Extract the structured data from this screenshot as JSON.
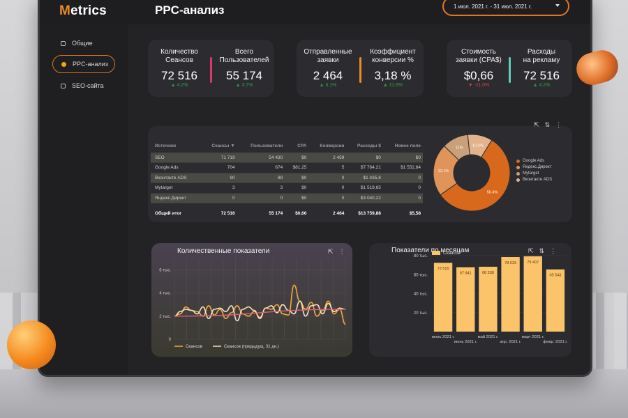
{
  "app": {
    "logo_m": "M",
    "logo_rest": "etrics",
    "page_title": "PPC-анализ"
  },
  "date_range": "1 июл. 2021 г. - 31 июл. 2021 г.",
  "sidebar": {
    "items": [
      {
        "label": "Общие",
        "active": false
      },
      {
        "label": "PPC-анализ",
        "active": true
      },
      {
        "label": "SEO-сайта",
        "active": false
      }
    ]
  },
  "kpis": [
    {
      "label_1": "Количество",
      "label_2": "Сеансов",
      "value": "72 516",
      "delta": "▲ 4.2%",
      "color": "#2ea043"
    },
    {
      "label_1": "Всего",
      "label_2": "Пользователей",
      "value": "55 174",
      "delta": "▲ 3.7%",
      "color": "#2ea043"
    },
    {
      "label_1": "Отправленные",
      "label_2": "заявки",
      "value": "2 464",
      "delta": "▲ 6.1%",
      "color": "#2ea043"
    },
    {
      "label_1": "Коэффициент",
      "label_2": "конверсии %",
      "value": "3,18 %",
      "delta": "▲ 11.6%",
      "color": "#2ea043"
    },
    {
      "label_1": "Стоимость",
      "label_2": "заявки (CPA$)",
      "value": "$0,66",
      "delta": "▼ -11.0%",
      "color": "#e04040"
    },
    {
      "label_1": "Расходы",
      "label_2": "на рекламу",
      "value": "72 516",
      "delta": "▲ 4.2%",
      "color": "#2ea043"
    }
  ],
  "accent_bars": {
    "pink": "#d63a68",
    "orange": "#f08a24",
    "teal": "#5fd0b8"
  },
  "table": {
    "headers": [
      "Источник",
      "Сеансы ▼",
      "Пользователи",
      "CPA",
      "Конверсии",
      "Расходы $",
      "Новое поле"
    ],
    "rows": [
      [
        "SEO",
        "71 719",
        "54 430",
        "$0",
        "2 459",
        "$0",
        "$0"
      ],
      [
        "Google Ads",
        "704",
        "674",
        "$81,25",
        "5",
        "$7 764,21",
        "$1 552,84"
      ],
      [
        "Вконтакте ADS",
        "90",
        "89",
        "$0",
        "0",
        "$1 435,8",
        "0"
      ],
      [
        "Mytarget",
        "3",
        "3",
        "$0",
        "0",
        "$1 519,65",
        "0"
      ],
      [
        "Яндекс.Директ",
        "0",
        "0",
        "$0",
        "0",
        "$3 040,22",
        "0"
      ]
    ],
    "total": [
      "Общий итог",
      "72 516",
      "55 174",
      "$0,66",
      "2 464",
      "$13 759,88",
      "$5,58"
    ]
  },
  "pie_legend": [
    "Google Ads",
    "Яндекс.Директ",
    "Mytarget",
    "Вконтакте ADS"
  ],
  "chart_data": [
    {
      "type": "pie",
      "categories": [
        "Google Ads",
        "Яндекс.Директ",
        "Mytarget",
        "Вконтакте ADS"
      ],
      "values": [
        56.4,
        22.1,
        11.0,
        10.4
      ],
      "labels": [
        "56.4%",
        "22.1%",
        "11%",
        "10.4%"
      ],
      "colors": [
        "#d8691c",
        "#e0945a",
        "#c9a07a",
        "#e2b38c"
      ]
    },
    {
      "type": "line",
      "title": "Количественные показатели",
      "ylim": [
        0,
        7
      ],
      "yticks": [
        "0",
        "2 тыс.",
        "4 тыс.",
        "6 тыс."
      ],
      "series": [
        {
          "name": "Сеансов",
          "color": "#f2a93c",
          "values": [
            2.0,
            2.2,
            2.8,
            2.5,
            2.4,
            2.0,
            2.9,
            2.1,
            2.6,
            1.8,
            2.3,
            2.9,
            2.2,
            2.0,
            2.4,
            1.9,
            2.7,
            2.6,
            3.0,
            2.2,
            2.1,
            4.7,
            3.3,
            2.6,
            3.2,
            2.0,
            2.5,
            3.3,
            2.2,
            2.6,
            1.3
          ]
        },
        {
          "name": "Сеансов (предыдущ. 31 дн.)",
          "color": "#f4e0c2",
          "values": [
            2.0,
            2.4,
            2.6,
            2.5,
            2.2,
            2.8,
            1.8,
            2.6,
            2.7,
            2.4,
            2.9,
            1.6,
            2.6,
            2.8,
            2.5,
            1.8,
            2.7,
            2.9,
            2.3,
            3.0,
            2.5,
            2.2,
            3.3,
            2.0,
            2.9,
            3.0,
            2.2,
            3.1,
            2.4,
            2.7,
            2.6
          ]
        },
        {
          "name": "",
          "color": "#e0607a",
          "trend": true,
          "values": [
            2.0,
            2.6
          ]
        }
      ]
    },
    {
      "type": "bar",
      "title": "Показатели по месяцам",
      "legend": "Сеансов",
      "categories": [
        "июль 2021 г.",
        "июнь 2021 г.",
        "май 2021 г.",
        "апр. 2021 г.",
        "март 2021 г.",
        "февр. 2021 г."
      ],
      "values": [
        72516,
        67841,
        68338,
        78533,
        79407,
        65543
      ],
      "labels": [
        "72 516",
        "67 841",
        "68 338",
        "78 533",
        "79 407",
        "65 543"
      ],
      "ylim": [
        0,
        80000
      ],
      "yticks": [
        "20 тыс.",
        "40 тыс.",
        "60 тыс.",
        "80 тыс."
      ],
      "color": "#fbc36a"
    }
  ]
}
